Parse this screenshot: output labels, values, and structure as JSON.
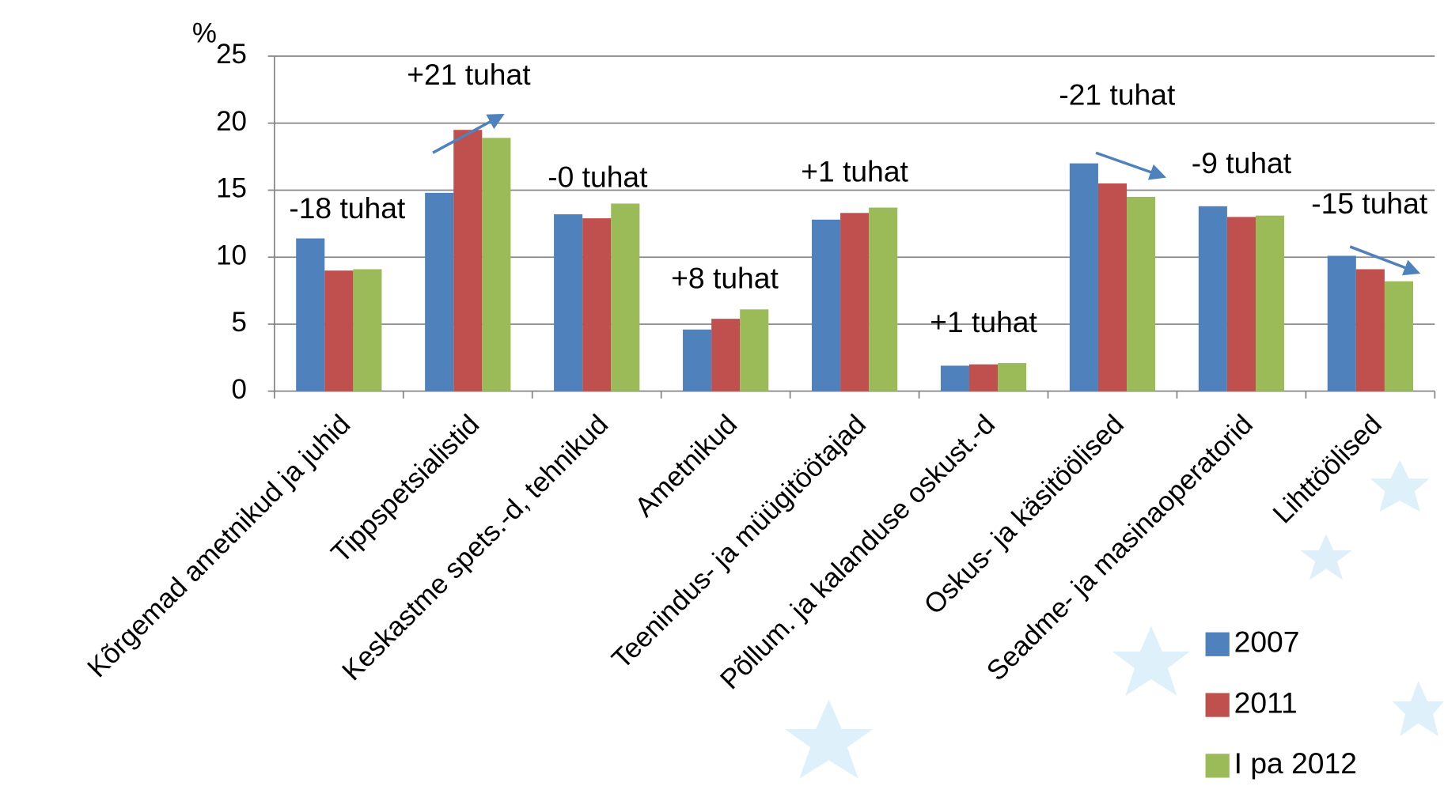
{
  "chart_data": {
    "type": "bar",
    "y_label": "%",
    "categories": [
      "Kõrgemad ametnikud ja juhid",
      "Tippspetsialistid",
      "Keskastme spets.-d, tehnikud",
      "Ametnikud",
      "Teenindus- ja müügitöötajad",
      "Põllum. ja kalanduse oskust.-d",
      "Oskus- ja käsitöölised",
      "Seadme- ja masinaoperatorid",
      "Lihttöölised"
    ],
    "series": [
      {
        "name": "2007",
        "color": "#4f81bd",
        "values": [
          11.4,
          14.8,
          13.2,
          4.6,
          12.8,
          1.9,
          17.0,
          13.8,
          10.1
        ]
      },
      {
        "name": "2011",
        "color": "#c0504d",
        "values": [
          9.0,
          19.5,
          12.9,
          5.4,
          13.3,
          2.0,
          15.5,
          13.0,
          9.1
        ]
      },
      {
        "name": "I pa 2012",
        "color": "#9bbb59",
        "values": [
          9.1,
          18.9,
          14.0,
          6.1,
          13.7,
          2.1,
          14.5,
          13.1,
          8.2
        ]
      }
    ],
    "annotations": [
      "-18 tuhat",
      "+21 tuhat",
      "-0 tuhat",
      "+8 tuhat",
      "+1 tuhat",
      "+1 tuhat",
      "-21 tuhat",
      "-9 tuhat",
      "-15 tuhat"
    ],
    "ylim": [
      0,
      25
    ],
    "yticks": [
      0,
      5,
      10,
      15,
      20,
      25
    ],
    "grid": true,
    "legend": "lower right"
  }
}
